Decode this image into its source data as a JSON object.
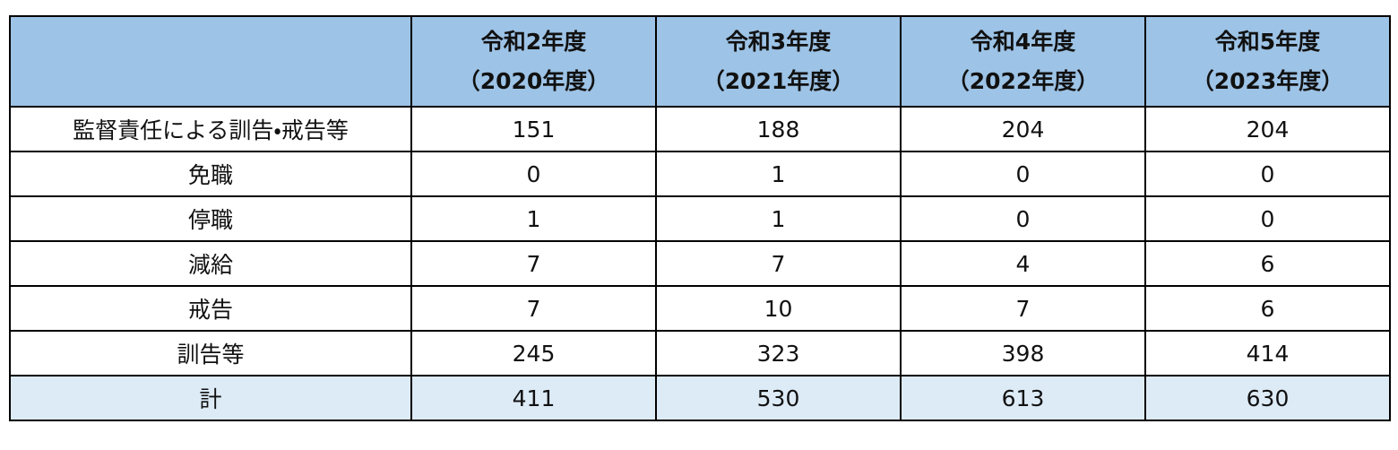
{
  "table": {
    "columns": [
      {
        "line1": "令和2年度",
        "line2": "（2020年度）"
      },
      {
        "line1": "令和3年度",
        "line2": "（2021年度）"
      },
      {
        "line1": "令和4年度",
        "line2": "（2022年度）"
      },
      {
        "line1": "令和5年度",
        "line2": "（2023年度）"
      }
    ],
    "rows": [
      {
        "label": "監督責任による訓告・戒告等",
        "values": [
          151,
          188,
          204,
          204
        ]
      },
      {
        "label": "免職",
        "values": [
          0,
          1,
          0,
          0
        ]
      },
      {
        "label": "停職",
        "values": [
          1,
          1,
          0,
          0
        ]
      },
      {
        "label": "減給",
        "values": [
          7,
          7,
          4,
          6
        ]
      },
      {
        "label": "戒告",
        "values": [
          7,
          10,
          7,
          6
        ]
      },
      {
        "label": "訓告等",
        "values": [
          245,
          323,
          398,
          414
        ]
      },
      {
        "label": "計",
        "values": [
          411,
          530,
          613,
          630
        ]
      }
    ]
  }
}
